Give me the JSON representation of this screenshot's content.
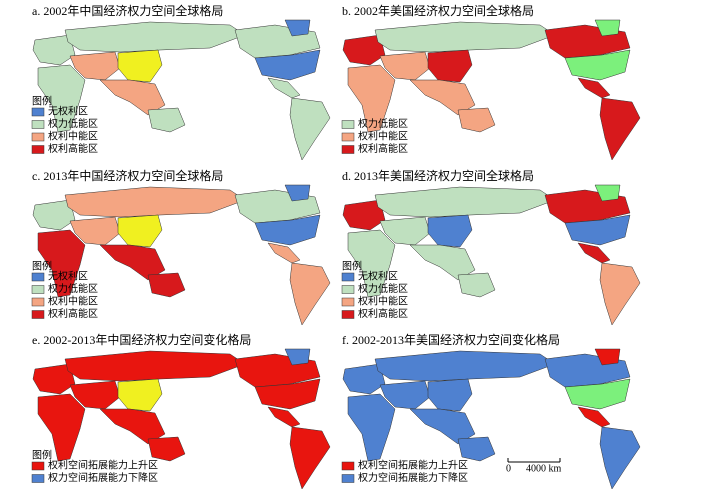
{
  "panels": [
    {
      "title": "a. 2002年中国经济权力空间全球格局",
      "legend_title": "图例",
      "legend": [
        {
          "label": "无权利区",
          "color": "#4f81d0"
        },
        {
          "label": "权力低能区",
          "color": "#bfe0bf"
        },
        {
          "label": "权利中能区",
          "color": "#f4a582"
        },
        {
          "label": "权利高能区",
          "color": "#d7191c"
        }
      ]
    },
    {
      "title": "b. 2002年美国经济权力空间全球格局",
      "legend": [
        {
          "label": "权力低能区",
          "color": "#bfe0bf"
        },
        {
          "label": "权利中能区",
          "color": "#f4a582"
        },
        {
          "label": "权利高能区",
          "color": "#d7191c"
        }
      ]
    },
    {
      "title": "c. 2013年中国经济权力空间全球格局",
      "legend_title": "图例",
      "legend": [
        {
          "label": "无权利区",
          "color": "#4f81d0"
        },
        {
          "label": "权力低能区",
          "color": "#bfe0bf"
        },
        {
          "label": "权利中能区",
          "color": "#f4a582"
        },
        {
          "label": "权利高能区",
          "color": "#d7191c"
        }
      ]
    },
    {
      "title": "d. 2013年美国经济权力空间全球格局",
      "legend_title": "图例",
      "legend": [
        {
          "label": "无权利区",
          "color": "#4f81d0"
        },
        {
          "label": "权力低能区",
          "color": "#bfe0bf"
        },
        {
          "label": "权利中能区",
          "color": "#f4a582"
        },
        {
          "label": "权利高能区",
          "color": "#d7191c"
        }
      ]
    },
    {
      "title": "e. 2002-2013年中国经济权力空间变化格局",
      "legend_title": "图例",
      "legend": [
        {
          "label": "权利空间拓展能力上升区",
          "color": "#e8150f"
        },
        {
          "label": "权力空间拓展能力下降区",
          "color": "#4f81d0"
        }
      ]
    },
    {
      "title": "f. 2002-2013年美国经济权力空间变化格局",
      "legend": [
        {
          "label": "权利空间拓展能力上升区",
          "color": "#e8150f"
        },
        {
          "label": "权力空间拓展能力下降区",
          "color": "#4f81d0"
        }
      ]
    }
  ],
  "scale_bar": {
    "start": "0",
    "end": "4000 km"
  }
}
